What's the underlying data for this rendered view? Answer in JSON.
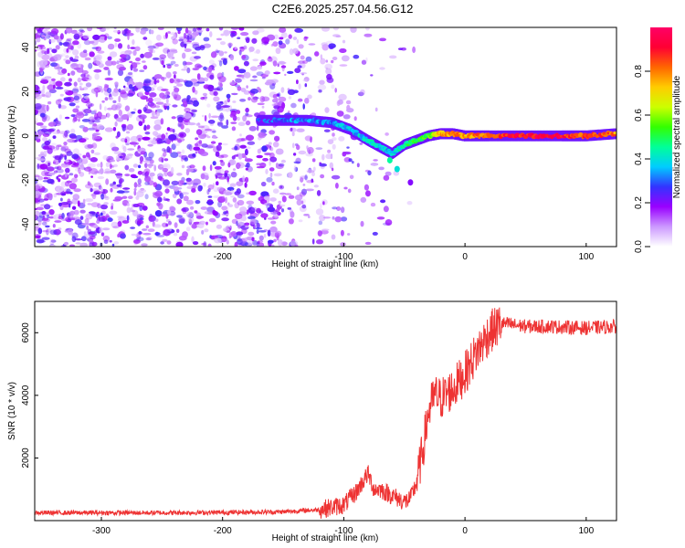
{
  "title": "C2E6.2025.257.04.56.G12",
  "chart_data": [
    {
      "type": "heatmap",
      "title": "C2E6.2025.257.04.56.G12",
      "xlabel": "Height of straight line (km)",
      "ylabel": "Frequency (Hz)",
      "xlim": [
        -355,
        125
      ],
      "ylim": [
        -50,
        49
      ],
      "x_ticks": [
        -300,
        -200,
        -100,
        0,
        100
      ],
      "y_ticks": [
        -40,
        -20,
        0,
        20,
        40
      ],
      "colorbar": {
        "label": "Normalized spectral amplitude",
        "range": [
          0,
          1
        ],
        "ticks": [
          "0.0",
          "0.2",
          "0.4",
          "0.6",
          "0.8"
        ],
        "tick_values": [
          0.0,
          0.2,
          0.4,
          0.6,
          0.8
        ],
        "stops": [
          "#ffffff",
          "#cc99ff",
          "#9900ff",
          "#3333ff",
          "#00ccff",
          "#00ff99",
          "#33ff00",
          "#ccff00",
          "#ffcc00",
          "#ff6600",
          "#ff0033",
          "#ff0066"
        ]
      },
      "noise_region": {
        "x_range": [
          -355,
          -100
        ],
        "freq_range": [
          -50,
          49
        ],
        "note": "broadband purple noise"
      },
      "signal_track": [
        {
          "x": -170,
          "freq": 7,
          "amp": 0.25
        },
        {
          "x": -150,
          "freq": 7,
          "amp": 0.3
        },
        {
          "x": -130,
          "freq": 7,
          "amp": 0.3
        },
        {
          "x": -110,
          "freq": 6,
          "amp": 0.35
        },
        {
          "x": -95,
          "freq": 3,
          "amp": 0.35
        },
        {
          "x": -80,
          "freq": -2,
          "amp": 0.4
        },
        {
          "x": -70,
          "freq": -5,
          "amp": 0.4
        },
        {
          "x": -60,
          "freq": -8,
          "amp": 0.35
        },
        {
          "x": -50,
          "freq": -4,
          "amp": 0.45
        },
        {
          "x": -40,
          "freq": -2,
          "amp": 0.5
        },
        {
          "x": -30,
          "freq": 0,
          "amp": 0.55
        },
        {
          "x": -20,
          "freq": 1,
          "amp": 0.75
        },
        {
          "x": -10,
          "freq": 1,
          "amp": 0.8
        },
        {
          "x": 0,
          "freq": 0,
          "amp": 0.75
        },
        {
          "x": 20,
          "freq": 0,
          "amp": 0.85
        },
        {
          "x": 50,
          "freq": 0,
          "amp": 0.9
        },
        {
          "x": 80,
          "freq": 0,
          "amp": 0.9
        },
        {
          "x": 100,
          "freq": 0,
          "amp": 0.85
        },
        {
          "x": 125,
          "freq": 1,
          "amp": 0.8
        }
      ]
    },
    {
      "type": "line",
      "xlabel": "Height of straight line (km)",
      "ylabel": "SNR (10 * v/v)",
      "xlim": [
        -355,
        125
      ],
      "ylim": [
        0,
        7000
      ],
      "x_ticks": [
        -300,
        -200,
        -100,
        0,
        100
      ],
      "y_ticks": [
        2000,
        4000,
        6000
      ],
      "series": [
        {
          "name": "SNR",
          "color": "#ee3333",
          "x": [
            -355,
            -300,
            -250,
            -200,
            -150,
            -120,
            -100,
            -90,
            -80,
            -75,
            -70,
            -65,
            -60,
            -50,
            -45,
            -40,
            -35,
            -30,
            -25,
            -20,
            -10,
            0,
            10,
            20,
            30,
            50,
            70,
            100,
            125
          ],
          "values": [
            250,
            250,
            250,
            260,
            280,
            350,
            500,
            900,
            1500,
            1000,
            1000,
            900,
            800,
            600,
            700,
            1200,
            2200,
            3500,
            4000,
            3900,
            4200,
            4700,
            5400,
            6000,
            6300,
            6200,
            6200,
            6150,
            6200
          ]
        }
      ]
    }
  ]
}
